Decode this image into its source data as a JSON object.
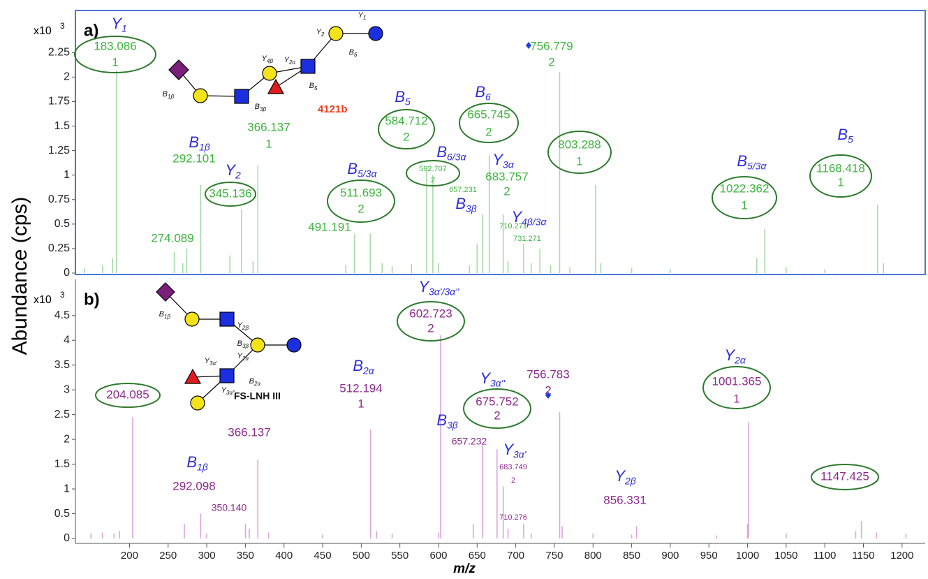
{
  "chart_data": [
    {
      "type": "stem",
      "panel": "a)",
      "multiplier": "x10",
      "exponent": "3",
      "ylabel": "Abundance (cps)",
      "xlim": [
        130,
        1230
      ],
      "ylim": [
        0,
        2.68
      ],
      "yticks": [
        0,
        0.25,
        0.5,
        0.75,
        1,
        1.25,
        1.5,
        1.75,
        2,
        2.25
      ],
      "color": "#a6dca6",
      "label_color": "#3cb43c",
      "ion_color": "#2b2bd9",
      "circle_color": "#2d7a2d",
      "marker_color": "#1f3fe0",
      "frame_color": "#4a78d8",
      "x": [
        183.086,
        274.089,
        292.101,
        345.136,
        366.137,
        491.191,
        511.693,
        584.712,
        592.707,
        657.231,
        665.745,
        683.757,
        710.271,
        731.271,
        756.779,
        803.288,
        1022.362,
        1168.418
      ],
      "values": [
        2.07,
        0.25,
        0.9,
        0.65,
        1.1,
        0.4,
        0.4,
        1.05,
        1.0,
        0.6,
        1.2,
        0.6,
        0.3,
        0.25,
        2.05,
        0.9,
        0.45,
        0.7
      ],
      "mz_labels": [
        "183.086",
        "274.089",
        "292.101",
        "345.136",
        "366.137",
        "491.191",
        "511.693",
        "584.712",
        "592.707",
        "657.231",
        "665.745",
        "683.757",
        "710.271",
        "731.271",
        "756.779",
        "803.288",
        "1022.362",
        "1168.418"
      ],
      "charges": [
        "1",
        null,
        null,
        null,
        "1",
        null,
        "2",
        "2",
        "2",
        null,
        "2",
        "2",
        null,
        null,
        "2",
        "1",
        "1",
        "1"
      ],
      "ions": [
        "Y",
        null,
        "B",
        "Y",
        null,
        null,
        "B",
        "B",
        "B",
        "B",
        "B",
        "Y",
        "Y",
        null,
        null,
        null,
        "B",
        "B"
      ],
      "ion_subs": [
        "1",
        null,
        "1β",
        "2",
        null,
        null,
        "5/3α",
        "5",
        "6/3α",
        "3β",
        "6",
        "3α",
        "4β/3α",
        null,
        null,
        null,
        "5/3α",
        "5"
      ],
      "circled": [
        true,
        false,
        false,
        true,
        false,
        false,
        true,
        true,
        true,
        false,
        true,
        false,
        false,
        false,
        false,
        true,
        true,
        true
      ],
      "noise_x": [
        142,
        165,
        178,
        258,
        269,
        330,
        360,
        480,
        527,
        540,
        565,
        600,
        640,
        650,
        690,
        720,
        745,
        770,
        810,
        850,
        900,
        1012,
        1050,
        1100,
        1176
      ],
      "noise_values": [
        0.05,
        0.08,
        0.15,
        0.22,
        0.1,
        0.18,
        0.12,
        0.08,
        0.1,
        0.07,
        0.09,
        0.1,
        0.08,
        0.3,
        0.12,
        0.1,
        0.08,
        0.06,
        0.1,
        0.05,
        0.04,
        0.15,
        0.06,
        0.04,
        0.1
      ]
    },
    {
      "type": "stem",
      "panel": "b)",
      "multiplier": "x10",
      "exponent": "3",
      "xlabel": "m/z",
      "xlim": [
        130,
        1230
      ],
      "ylim": [
        0,
        5.23
      ],
      "yticks": [
        0,
        0.5,
        1,
        1.5,
        2,
        2.5,
        3,
        3.5,
        4,
        4.5
      ],
      "xticks": [
        200,
        250,
        300,
        350,
        400,
        450,
        500,
        550,
        600,
        650,
        700,
        750,
        800,
        850,
        900,
        950,
        1000,
        1050,
        1100,
        1150,
        1200
      ],
      "color": "#dba6db",
      "label_color": "#8c2a8c",
      "ion_color": "#2b2bd9",
      "circle_color": "#2d7a2d",
      "marker_color": "#1f3fe0",
      "x": [
        204.085,
        292.098,
        350.14,
        366.137,
        512.194,
        602.723,
        657.232,
        675.752,
        683.749,
        710.276,
        756.783,
        856.331,
        1001.365,
        1147.425
      ],
      "values": [
        2.45,
        0.5,
        0.3,
        1.6,
        2.2,
        4.1,
        1.9,
        1.8,
        1.05,
        0.3,
        2.55,
        0.25,
        2.35,
        0.35
      ],
      "mz_labels": [
        "204.085",
        "292.098",
        "350.140",
        "366.137",
        "512.194",
        "602.723",
        "657.232",
        "675.752",
        "683.749",
        "710.276",
        "756.783",
        "856.331",
        "1001.365",
        "1147.425"
      ],
      "charges": [
        null,
        null,
        null,
        null,
        "1",
        "2",
        null,
        "2",
        "2",
        null,
        "2",
        null,
        "1",
        null
      ],
      "ions": [
        null,
        "B",
        null,
        null,
        "B",
        "Y",
        "B",
        "Y",
        "Y",
        null,
        null,
        "Y",
        "Y",
        null
      ],
      "ion_subs": [
        null,
        "1β",
        null,
        null,
        "2α",
        "3α'/3α''",
        "3β",
        "3α''",
        "3α'",
        null,
        null,
        "2β",
        "2α",
        null
      ],
      "circled": [
        true,
        false,
        false,
        false,
        false,
        true,
        false,
        true,
        false,
        false,
        false,
        false,
        true,
        true
      ],
      "noise_x": [
        150,
        165,
        180,
        187,
        271,
        300,
        355,
        380,
        450,
        520,
        540,
        600,
        645,
        690,
        720,
        760,
        800,
        850,
        960,
        1000,
        1050,
        1140,
        1167,
        1205
      ],
      "noise_values": [
        0.1,
        0.12,
        0.1,
        0.15,
        0.3,
        0.1,
        0.2,
        0.12,
        0.08,
        0.15,
        0.1,
        0.12,
        0.3,
        0.2,
        0.1,
        0.25,
        0.1,
        0.08,
        0.06,
        0.3,
        0.1,
        0.15,
        0.12,
        0.1
      ]
    }
  ],
  "structures": [
    {
      "name": "4121b",
      "bonds": [
        [
          "Y",
          "1"
        ],
        [
          "Y",
          "2"
        ],
        [
          "B",
          "6"
        ],
        [
          "Y",
          "4β"
        ],
        [
          "Y",
          "2α"
        ],
        [
          "B",
          "5"
        ],
        [
          "B",
          "1β"
        ],
        [
          "B",
          "3β"
        ]
      ]
    },
    {
      "name": "FS-LNH III",
      "bonds": [
        [
          "B",
          "1β"
        ],
        [
          "Y",
          "2β"
        ],
        [
          "B",
          "3β"
        ],
        [
          "Y",
          "2α"
        ],
        [
          "Y",
          "3α'"
        ],
        [
          "B",
          "2α"
        ],
        [
          "Y",
          "3α''"
        ]
      ]
    }
  ]
}
